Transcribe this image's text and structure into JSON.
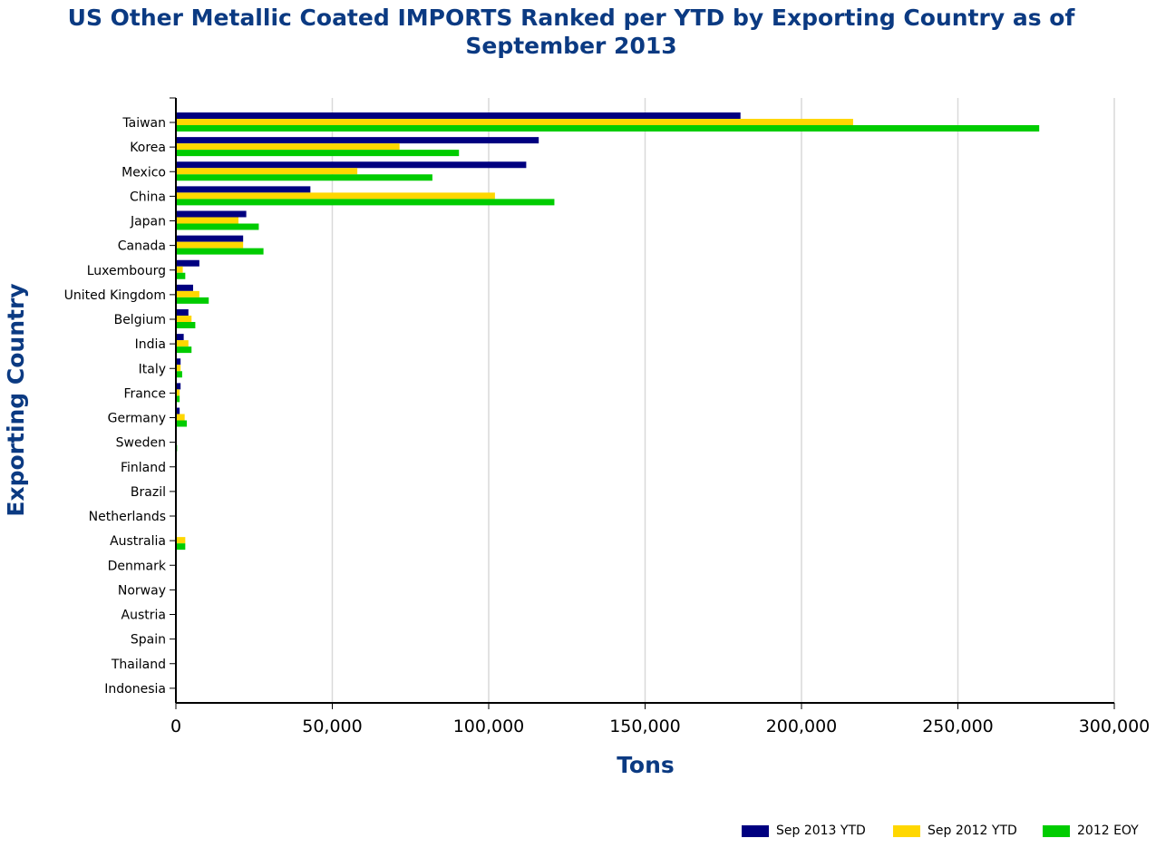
{
  "chart_data": {
    "type": "bar",
    "orientation": "horizontal",
    "title": "US Other Metallic Coated IMPORTS Ranked per YTD by Exporting Country as of September 2013",
    "xlabel": "Tons",
    "ylabel": "Exporting Country",
    "xlim": [
      0,
      300000
    ],
    "x_ticks": [
      0,
      50000,
      100000,
      150000,
      200000,
      250000,
      300000
    ],
    "x_tick_labels": [
      "0",
      "50,000",
      "100,000",
      "150,000",
      "200,000",
      "250,000",
      "300,000"
    ],
    "grid": "vertical",
    "legend_position": "bottom-right",
    "categories": [
      "Taiwan",
      "Korea",
      "Mexico",
      "China",
      "Japan",
      "Canada",
      "Luxembourg",
      "United Kingdom",
      "Belgium",
      "India",
      "Italy",
      "France",
      "Germany",
      "Sweden",
      "Finland",
      "Brazil",
      "Netherlands",
      "Australia",
      "Denmark",
      "Norway",
      "Austria",
      "Spain",
      "Thailand",
      "Indonesia"
    ],
    "series": [
      {
        "name": "Sep 2013 YTD",
        "color": "#000080",
        "values": [
          180500,
          116000,
          112000,
          43000,
          22500,
          21500,
          7500,
          5500,
          4000,
          2500,
          1500,
          1500,
          1200,
          300,
          100,
          100,
          50,
          200,
          50,
          30,
          20,
          20,
          10,
          10
        ]
      },
      {
        "name": "Sep 2012 YTD",
        "color": "#ffd700",
        "values": [
          216500,
          71500,
          58000,
          102000,
          20000,
          21500,
          2200,
          7500,
          5000,
          4000,
          1500,
          1200,
          2800,
          300,
          100,
          100,
          50,
          3000,
          50,
          30,
          20,
          20,
          10,
          10
        ]
      },
      {
        "name": "2012 EOY",
        "color": "#00cc00",
        "values": [
          276000,
          90500,
          82000,
          121000,
          26500,
          28000,
          3000,
          10500,
          6200,
          5000,
          2000,
          1200,
          3500,
          400,
          150,
          100,
          80,
          3000,
          80,
          50,
          30,
          30,
          20,
          20
        ]
      }
    ]
  }
}
